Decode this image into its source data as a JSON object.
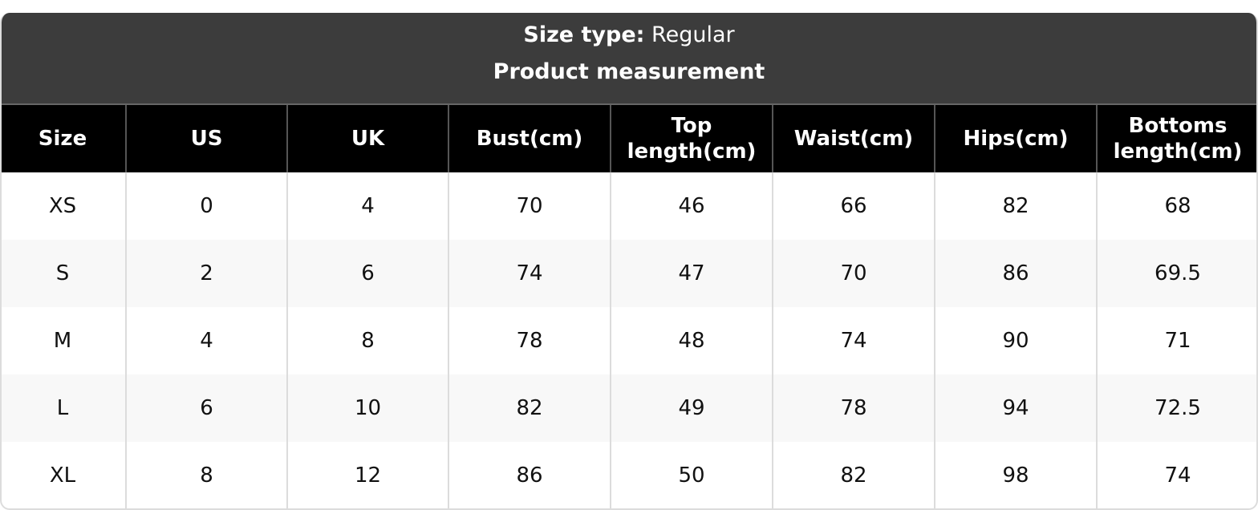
{
  "header": {
    "size_type_label": "Size type:",
    "size_type_value": "Regular",
    "subtitle": "Product measurement"
  },
  "table": {
    "columns": [
      "Size",
      "US",
      "UK",
      "Bust(cm)",
      "Top length(cm)",
      "Waist(cm)",
      "Hips(cm)",
      "Bottoms length(cm)"
    ],
    "rows": [
      [
        "XS",
        "0",
        "4",
        "70",
        "46",
        "66",
        "82",
        "68"
      ],
      [
        "S",
        "2",
        "6",
        "74",
        "47",
        "70",
        "86",
        "69.5"
      ],
      [
        "M",
        "4",
        "8",
        "78",
        "48",
        "74",
        "90",
        "71"
      ],
      [
        "L",
        "6",
        "10",
        "82",
        "49",
        "78",
        "94",
        "72.5"
      ],
      [
        "XL",
        "8",
        "12",
        "86",
        "50",
        "82",
        "98",
        "74"
      ]
    ]
  },
  "colors": {
    "header_bg": "#3c3c3c",
    "column_header_bg": "#000000",
    "alt_row_bg": "#f8f8f8"
  }
}
